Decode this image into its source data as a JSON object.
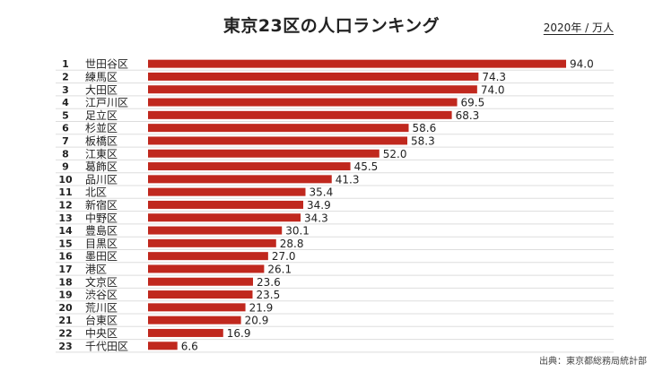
{
  "title": "東京23区の人口ランキング",
  "unit": "2020年 / 万人",
  "source": "出典：東京都総務局統計部",
  "colors": {
    "bar": "#c0281e",
    "row_line": "#dddddd"
  },
  "chart_data": {
    "type": "bar",
    "orientation": "horizontal",
    "title": "東京23区の人口ランキング",
    "unit": "万人",
    "xlim": [
      0,
      94
    ],
    "grid": false,
    "ranks": [
      "1",
      "2",
      "3",
      "4",
      "5",
      "6",
      "7",
      "8",
      "9",
      "10",
      "11",
      "12",
      "13",
      "14",
      "15",
      "16",
      "17",
      "18",
      "19",
      "20",
      "21",
      "22",
      "23"
    ],
    "categories": [
      "世田谷区",
      "練馬区",
      "大田区",
      "江戸川区",
      "足立区",
      "杉並区",
      "板橋区",
      "江東区",
      "葛飾区",
      "品川区",
      "北区",
      "新宿区",
      "中野区",
      "豊島区",
      "目黒区",
      "墨田区",
      "港区",
      "文京区",
      "渋谷区",
      "荒川区",
      "台東区",
      "中央区",
      "千代田区"
    ],
    "values": [
      94.0,
      74.3,
      74.0,
      69.5,
      68.3,
      58.6,
      58.3,
      52.0,
      45.5,
      41.3,
      35.4,
      34.9,
      34.3,
      30.1,
      28.8,
      27.0,
      26.1,
      23.6,
      23.5,
      21.9,
      20.9,
      16.9,
      6.6
    ],
    "value_labels": [
      "94.0",
      "74.3",
      "74.0",
      "69.5",
      "68.3",
      "58.6",
      "58.3",
      "52.0",
      "45.5",
      "41.3",
      "35.4",
      "34.9",
      "34.3",
      "30.1",
      "28.8",
      "27.0",
      "26.1",
      "23.6",
      "23.5",
      "21.9",
      "20.9",
      "16.9",
      "6.6"
    ]
  }
}
